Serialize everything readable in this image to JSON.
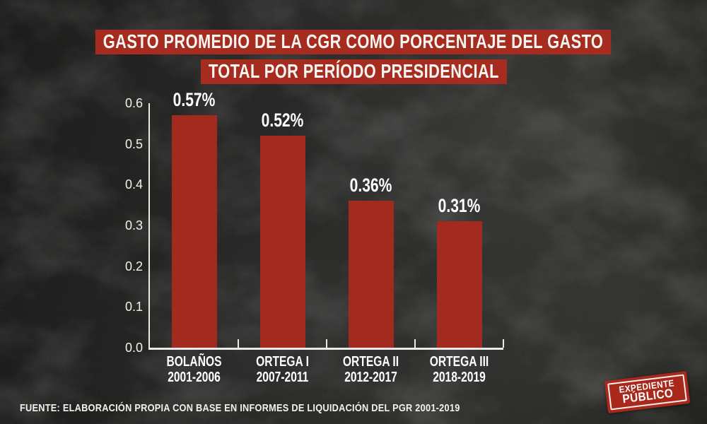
{
  "title": {
    "line1": "GASTO PROMEDIO DE LA CGR COMO PORCENTAJE DEL GASTO",
    "line2": "TOTAL POR PERÍODO PRESIDENCIAL"
  },
  "chart_data": {
    "type": "bar",
    "title": "GASTO PROMEDIO DE LA CGR COMO PORCENTAJE DEL GASTO TOTAL POR PERÍODO PRESIDENCIAL",
    "categories": [
      "BOLAÑOS",
      "ORTEGA I",
      "ORTEGA II",
      "ORTEGA III"
    ],
    "periods": [
      "2001-2006",
      "2007-2011",
      "2012-2017",
      "2018-2019"
    ],
    "values": [
      0.57,
      0.52,
      0.36,
      0.31
    ],
    "value_labels": [
      "0.57%",
      "0.52%",
      "0.36%",
      "0.31%"
    ],
    "xlabel": "",
    "ylabel": "",
    "ylim": [
      0,
      0.6
    ],
    "y_ticks": [
      "0.6",
      "0.5",
      "0.4",
      "0.3",
      "0.2",
      "0.1",
      "0.0"
    ],
    "grid": false,
    "legend": false,
    "bar_color": "#a32a1e"
  },
  "footer": {
    "source": "FUENTE: ELABORACIÓN PROPIA CON BASE EN INFORMES DE LIQUIDACIÓN DEL PGR 2001-2019"
  },
  "logo": {
    "line1": "EXPEDIENTE",
    "line2": "PÚBLICO"
  },
  "colors": {
    "accent_red": "#a62c1f",
    "bar_red": "#a32a1e",
    "stamp_red": "#a8291c",
    "background": "#232322",
    "text": "#ffffff"
  }
}
